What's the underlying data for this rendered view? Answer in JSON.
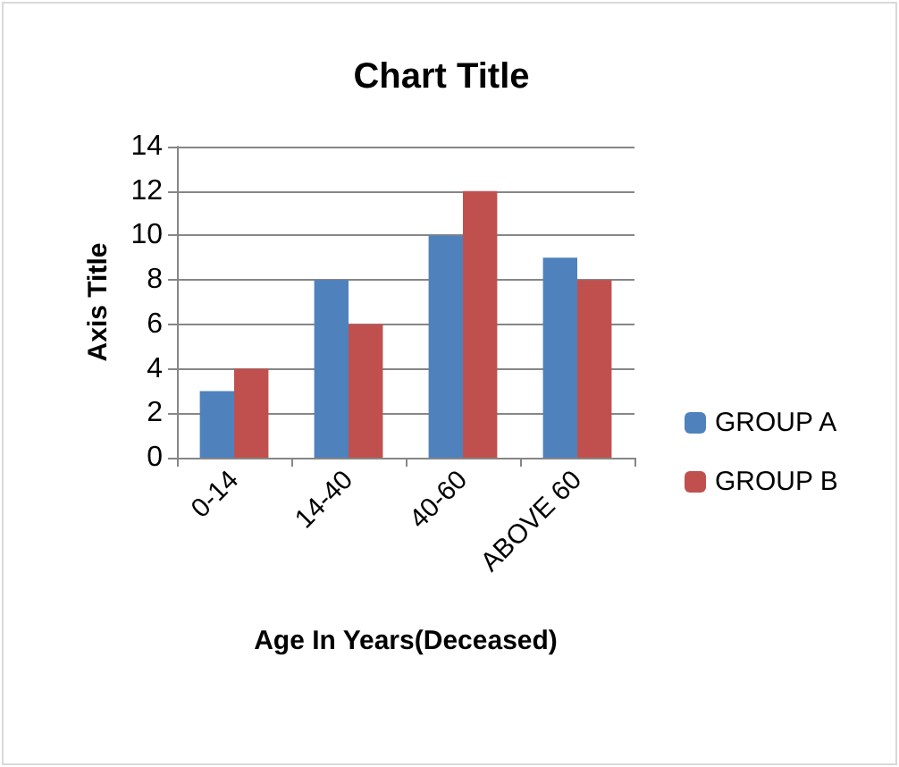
{
  "chart_data": {
    "type": "bar",
    "title": "Chart Title",
    "xlabel": "Age In Years(Deceased)",
    "ylabel": "Axis Title",
    "categories": [
      "0-14",
      "14-40",
      "40-60",
      "ABOVE 60"
    ],
    "series": [
      {
        "name": "GROUP A",
        "color": "#4f81bd",
        "values": [
          3,
          8,
          10,
          9
        ]
      },
      {
        "name": "GROUP B",
        "color": "#c0504d",
        "values": [
          4,
          6,
          12,
          8
        ]
      }
    ],
    "ylim": [
      0,
      14
    ],
    "yticks": [
      0,
      2,
      4,
      6,
      8,
      10,
      12,
      14
    ],
    "grid": "y",
    "legend": "right"
  }
}
